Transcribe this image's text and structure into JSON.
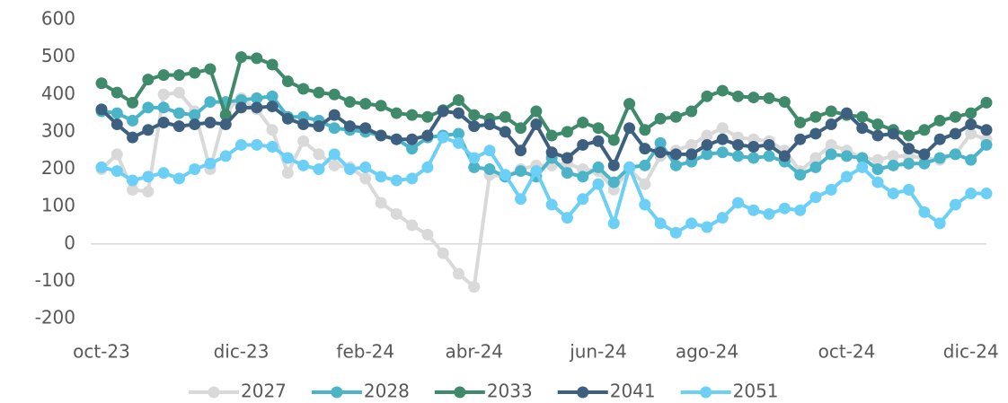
{
  "chart_data": {
    "type": "line",
    "categories": [
      "oct-23",
      null,
      null,
      null,
      null,
      null,
      null,
      null,
      null,
      "dic-23",
      null,
      null,
      null,
      null,
      null,
      null,
      null,
      "feb-24",
      null,
      null,
      null,
      null,
      null,
      null,
      "abr-24",
      null,
      null,
      null,
      null,
      null,
      null,
      null,
      "jun-24",
      null,
      null,
      null,
      null,
      null,
      null,
      "ago-24",
      null,
      null,
      null,
      null,
      null,
      null,
      null,
      null,
      "oct-24",
      null,
      null,
      null,
      null,
      null,
      null,
      null,
      "dic-24",
      null
    ],
    "series": [
      {
        "name": "2027",
        "color": "#d9d9d9",
        "values": [
          200,
          240,
          145,
          140,
          400,
          405,
          355,
          200,
          355,
          390,
          360,
          305,
          190,
          275,
          240,
          210,
          205,
          175,
          110,
          80,
          50,
          25,
          -25,
          -80,
          -115,
          185,
          180,
          200,
          210,
          210,
          215,
          200,
          195,
          145,
          200,
          160,
          235,
          250,
          265,
          290,
          310,
          285,
          280,
          275,
          250,
          195,
          230,
          265,
          250,
          230,
          225,
          235,
          235,
          230,
          225,
          240,
          295,
          280
        ]
      },
      {
        "name": "2028",
        "color": "#4bb4c8",
        "values": [
          355,
          350,
          330,
          365,
          365,
          350,
          345,
          380,
          380,
          385,
          390,
          395,
          340,
          340,
          330,
          310,
          305,
          300,
          290,
          280,
          255,
          285,
          290,
          295,
          205,
          200,
          180,
          195,
          180,
          230,
          190,
          180,
          205,
          165,
          205,
          210,
          270,
          210,
          220,
          240,
          245,
          235,
          230,
          235,
          220,
          185,
          205,
          240,
          235,
          230,
          200,
          210,
          215,
          215,
          230,
          240,
          225,
          265
        ]
      },
      {
        "name": "2033",
        "color": "#3f8a6b",
        "values": [
          430,
          405,
          378,
          440,
          452,
          452,
          458,
          468,
          345,
          500,
          497,
          480,
          435,
          415,
          405,
          400,
          380,
          375,
          370,
          350,
          345,
          340,
          358,
          385,
          345,
          335,
          340,
          310,
          355,
          290,
          300,
          325,
          310,
          278,
          375,
          305,
          335,
          340,
          355,
          395,
          410,
          395,
          392,
          390,
          380,
          325,
          340,
          355,
          345,
          340,
          320,
          305,
          290,
          305,
          330,
          340,
          350,
          378
        ]
      },
      {
        "name": "2041",
        "color": "#3d6080",
        "values": [
          360,
          320,
          285,
          305,
          325,
          315,
          320,
          325,
          320,
          365,
          365,
          368,
          335,
          320,
          315,
          345,
          315,
          310,
          290,
          280,
          280,
          290,
          355,
          350,
          315,
          320,
          300,
          250,
          320,
          245,
          230,
          265,
          275,
          210,
          310,
          255,
          245,
          240,
          240,
          265,
          280,
          265,
          260,
          265,
          235,
          280,
          295,
          320,
          350,
          310,
          290,
          295,
          255,
          240,
          280,
          295,
          320,
          305
        ]
      },
      {
        "name": "2051",
        "color": "#6ccff6",
        "values": [
          205,
          195,
          170,
          180,
          190,
          175,
          200,
          215,
          235,
          265,
          265,
          260,
          230,
          210,
          200,
          240,
          200,
          205,
          180,
          170,
          175,
          205,
          285,
          270,
          230,
          250,
          185,
          120,
          195,
          105,
          70,
          120,
          160,
          55,
          205,
          105,
          55,
          30,
          55,
          45,
          70,
          110,
          90,
          80,
          95,
          90,
          125,
          145,
          180,
          205,
          165,
          135,
          145,
          85,
          55,
          105,
          135,
          135
        ]
      }
    ],
    "ylim": [
      -200,
      600
    ],
    "yticks": [
      -200,
      -100,
      0,
      100,
      200,
      300,
      400,
      500,
      600
    ],
    "legend": "bottom"
  }
}
